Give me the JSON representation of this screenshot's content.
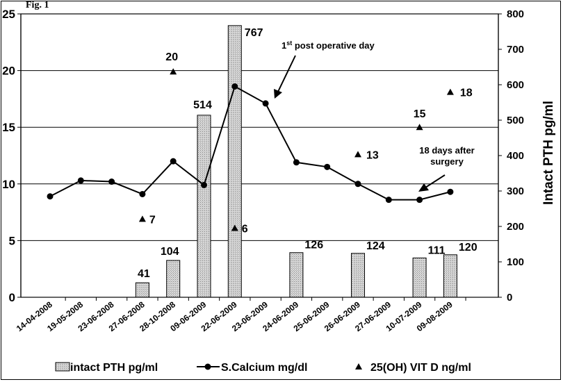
{
  "figure_label": "Fig. 1",
  "chart_data": {
    "type": "bar",
    "categories": [
      "14-04-2008",
      "19-05-2008",
      "23-06-2008",
      "27-06-2008",
      "28-10-2008",
      "09-06-2009",
      "22-06-2009",
      "23-06-2009",
      "24-06-2009",
      "25-06-2009",
      "26-06-2009",
      "27-06-2009",
      "10-07-2009",
      "09-08-2009"
    ],
    "left_axis": {
      "ylim": [
        0,
        25
      ],
      "ticks": [
        "0",
        "5",
        "10",
        "15",
        "20",
        "25"
      ]
    },
    "right_axis": {
      "ylabel": "Intact PTH pg/ml",
      "ylim": [
        0,
        800
      ],
      "ticks": [
        "0",
        "100",
        "200",
        "300",
        "400",
        "500",
        "600",
        "700",
        "800"
      ]
    },
    "grid": true,
    "legend_position": "bottom",
    "series": [
      {
        "name": "intact PTH pg/ml",
        "type": "bar",
        "axis": "right",
        "values": [
          null,
          null,
          null,
          41,
          104,
          514,
          767,
          null,
          126,
          null,
          124,
          null,
          111,
          120
        ],
        "labels": [
          null,
          null,
          null,
          "41",
          "104",
          "514",
          "767",
          null,
          "126",
          null,
          "124",
          null,
          "111",
          "120"
        ]
      },
      {
        "name": "S.Calcium mg/dl",
        "type": "line",
        "axis": "left",
        "values": [
          8.9,
          10.3,
          10.2,
          9.1,
          12.0,
          9.9,
          18.6,
          17.1,
          11.9,
          11.5,
          10.0,
          8.6,
          8.6,
          9.3
        ]
      },
      {
        "name": "25(OH) VIT D ng/ml",
        "type": "scatter",
        "axis": "left",
        "values": [
          null,
          null,
          null,
          6.9,
          19.9,
          null,
          6.1,
          null,
          null,
          null,
          12.6,
          null,
          15.0,
          18.1
        ],
        "labels": [
          null,
          null,
          null,
          "7",
          "20",
          null,
          "6",
          null,
          null,
          null,
          "13",
          null,
          "15",
          "18"
        ]
      }
    ],
    "annotations": [
      {
        "text_main": "1",
        "text_sup": "st",
        "text_rest": " post operative day",
        "category": "23-06-2009"
      },
      {
        "lines": [
          "18 days after",
          "surgery"
        ],
        "category": "10-07-2009"
      }
    ]
  }
}
